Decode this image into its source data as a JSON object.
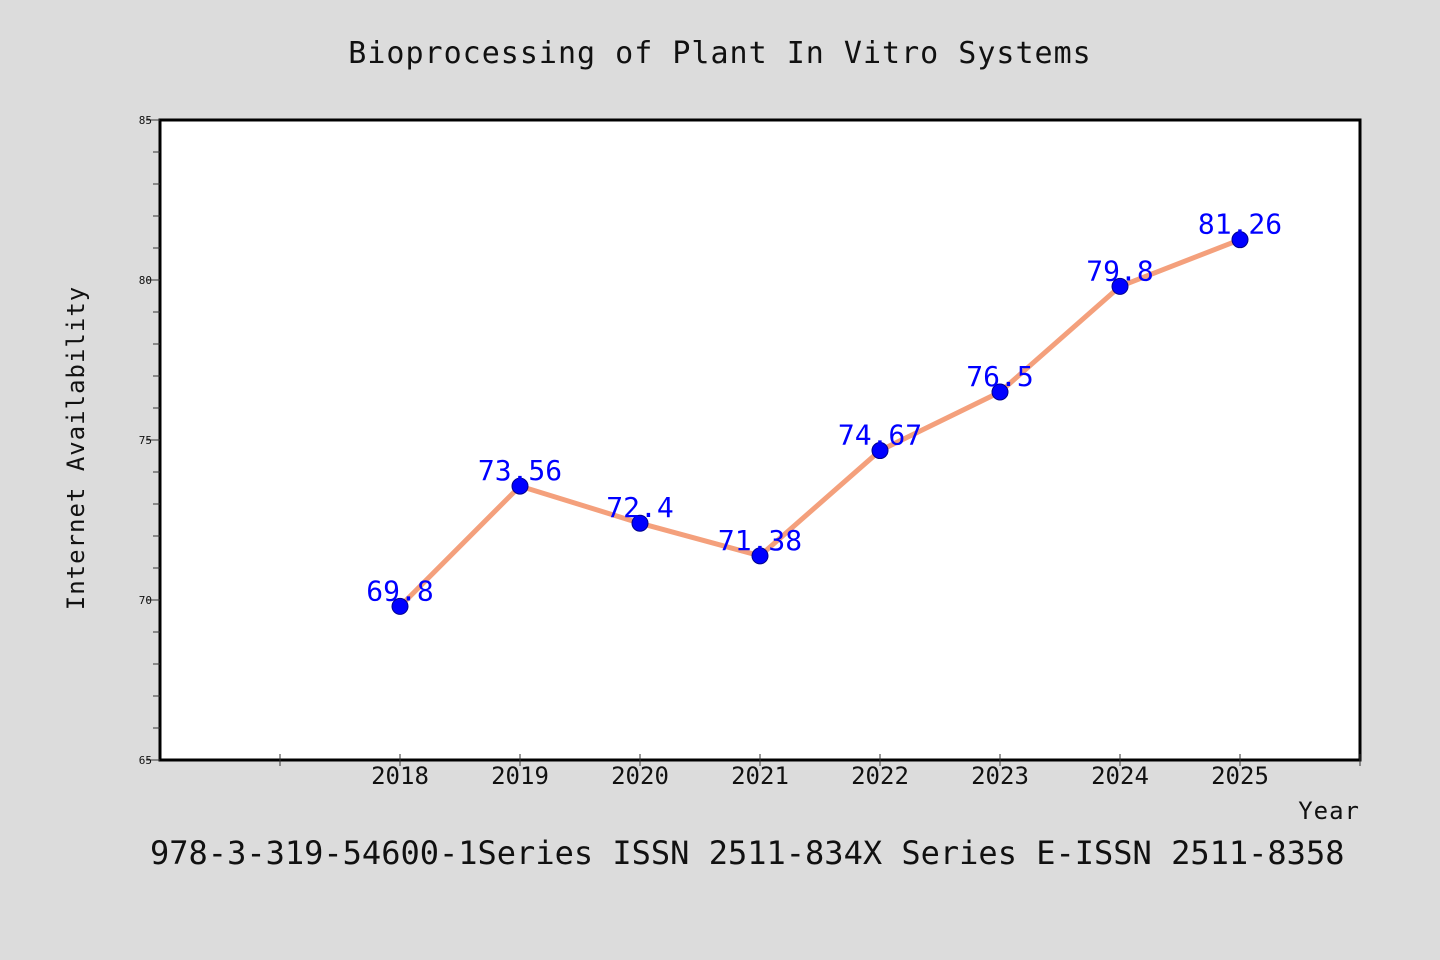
{
  "chart_data": {
    "type": "line",
    "title": "Bioprocessing of Plant In Vitro Systems",
    "xlabel": "Year",
    "ylabel": "Internet Availability",
    "x": [
      "2018",
      "2019",
      "2020",
      "2021",
      "2022",
      "2023",
      "2024",
      "2025"
    ],
    "series": [
      {
        "values": [
          69.8,
          73.56,
          72.4,
          71.38,
          74.67,
          76.5,
          79.8,
          81.26
        ],
        "data_labels": [
          "69.8",
          "73.56",
          "72.4",
          "71.38",
          "74.67",
          "76.5",
          "79.8",
          "81.26"
        ]
      }
    ],
    "ylim": [
      65,
      85
    ],
    "yticks": [
      "65",
      "70",
      "75",
      "80",
      "85"
    ],
    "x_slot_range": [
      -2,
      8
    ],
    "grid": false,
    "legend": "none",
    "colors": {
      "line": "#f4a07c",
      "marker": "#0000ff",
      "data_label": "#0000ff",
      "background": "#dcdcdc",
      "plot_background": "#ffffff"
    }
  },
  "footer": {
    "text": "978-3-319-54600-1Series ISSN 2511-834X Series E-ISSN 2511-8358"
  }
}
